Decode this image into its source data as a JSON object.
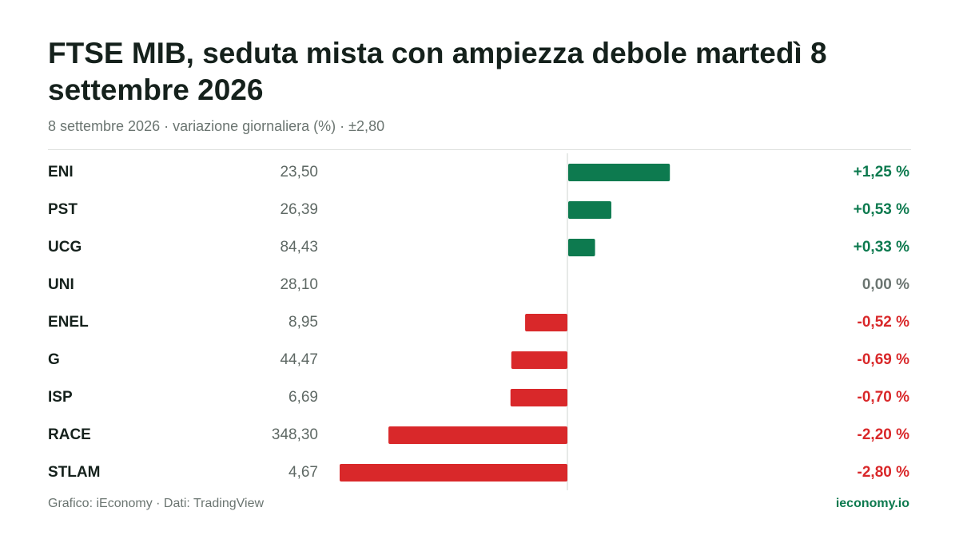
{
  "header": {
    "title": "FTSE MIB, seduta mista con ampiezza debole martedì 8 settembre 2026",
    "subtitle": "8 settembre 2026 · variazione giornaliera (%) · ±2,80"
  },
  "colors": {
    "positive": "#0d7a4f",
    "negative": "#d9282a",
    "neutral": "#6b7571",
    "zero_line": "#cfd4d1"
  },
  "chart_data": {
    "type": "bar",
    "orientation": "horizontal",
    "title": "FTSE MIB, seduta mista con ampiezza debole martedì 8 settembre 2026",
    "subtitle": "8 settembre 2026 · variazione giornaliera (%) · ±2,80",
    "xlim": [
      -2.8,
      2.8
    ],
    "unit": "%",
    "grid": false,
    "categories": [
      "ENI",
      "PST",
      "UCG",
      "UNI",
      "ENEL",
      "G",
      "ISP",
      "RACE",
      "STLAM"
    ],
    "prices": [
      "23,50",
      "26,39",
      "84,43",
      "28,10",
      "8,95",
      "44,47",
      "6,69",
      "348,30",
      "4,67"
    ],
    "values": [
      1.25,
      0.53,
      0.33,
      0.0,
      -0.52,
      -0.69,
      -0.7,
      -2.2,
      -2.8
    ],
    "labels": [
      "+1,25 %",
      "+0,53 %",
      "+0,33 %",
      "0,00 %",
      "-0,52 %",
      "-0,69 %",
      "-0,70 %",
      "-2,20 %",
      "-2,80 %"
    ]
  },
  "footer": {
    "source": "Grafico: iEconomy · Dati: TradingView",
    "brand": "ieconomy.io"
  }
}
